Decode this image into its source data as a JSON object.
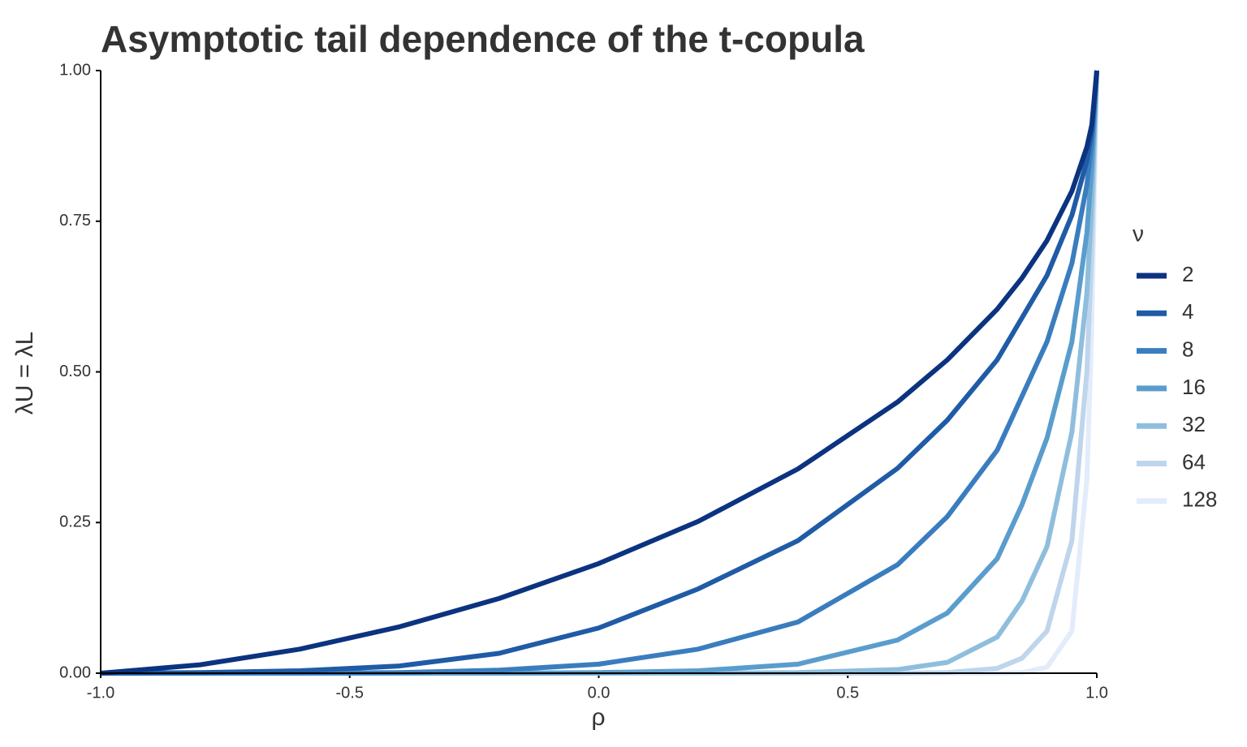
{
  "chart_data": {
    "type": "line",
    "title": "Asymptotic tail dependence of the t-copula",
    "xlabel": "ρ",
    "ylabel": "λU = λL",
    "legend_title": "ν",
    "x": [
      -1.0,
      -0.8,
      -0.6,
      -0.4,
      -0.2,
      0,
      0.2,
      0.4,
      0.6,
      0.7,
      0.8,
      0.85,
      0.9,
      0.95,
      0.98,
      0.99,
      1.0
    ],
    "series": [
      {
        "name": "2",
        "color": "#0b3380",
        "values": [
          0,
          0.014,
          0.04,
          0.077,
          0.124,
          0.182,
          0.252,
          0.339,
          0.45,
          0.52,
          0.604,
          0.656,
          0.718,
          0.8,
          0.873,
          0.91,
          1
        ]
      },
      {
        "name": "4",
        "color": "#1f5ba6",
        "values": [
          0,
          0.001,
          0.004,
          0.012,
          0.033,
          0.075,
          0.14,
          0.22,
          0.34,
          0.42,
          0.52,
          0.59,
          0.66,
          0.76,
          0.85,
          0.9,
          1
        ]
      },
      {
        "name": "8",
        "color": "#3a7dbf",
        "values": [
          0,
          0,
          0,
          0.001,
          0.005,
          0.015,
          0.04,
          0.085,
          0.18,
          0.26,
          0.37,
          0.46,
          0.55,
          0.68,
          0.81,
          0.88,
          1
        ]
      },
      {
        "name": "16",
        "color": "#5a9dcd",
        "values": [
          0,
          0,
          0,
          0,
          0,
          0.001,
          0.004,
          0.015,
          0.055,
          0.1,
          0.19,
          0.28,
          0.39,
          0.55,
          0.73,
          0.84,
          1
        ]
      },
      {
        "name": "32",
        "color": "#8fbedd",
        "values": [
          0,
          0,
          0,
          0,
          0,
          0,
          0,
          0.001,
          0.006,
          0.018,
          0.06,
          0.12,
          0.21,
          0.4,
          0.63,
          0.78,
          1
        ]
      },
      {
        "name": "64",
        "color": "#bed5ec",
        "values": [
          0,
          0,
          0,
          0,
          0,
          0,
          0,
          0,
          0,
          0.001,
          0.008,
          0.025,
          0.07,
          0.22,
          0.5,
          0.7,
          1
        ]
      },
      {
        "name": "128",
        "color": "#e2ecfb",
        "values": [
          0,
          0,
          0,
          0,
          0,
          0,
          0,
          0,
          0,
          0,
          0,
          0.001,
          0.01,
          0.07,
          0.32,
          0.58,
          1
        ]
      }
    ],
    "xlim": [
      -1.0,
      1.0
    ],
    "xticks": [
      {
        "value": -1.0,
        "label": "-1.0"
      },
      -0.5,
      {
        "value": 0,
        "label": "0.0"
      },
      0.5,
      {
        "value": 1.0,
        "label": "1.0"
      }
    ],
    "ylim": [
      0,
      1
    ],
    "yticks": [
      {
        "value": 0,
        "label": "0.00"
      },
      0.25,
      {
        "value": 0.5,
        "label": "0.50"
      },
      0.75,
      {
        "value": 1,
        "label": "1.00"
      }
    ],
    "grid": false,
    "legend": "right"
  }
}
